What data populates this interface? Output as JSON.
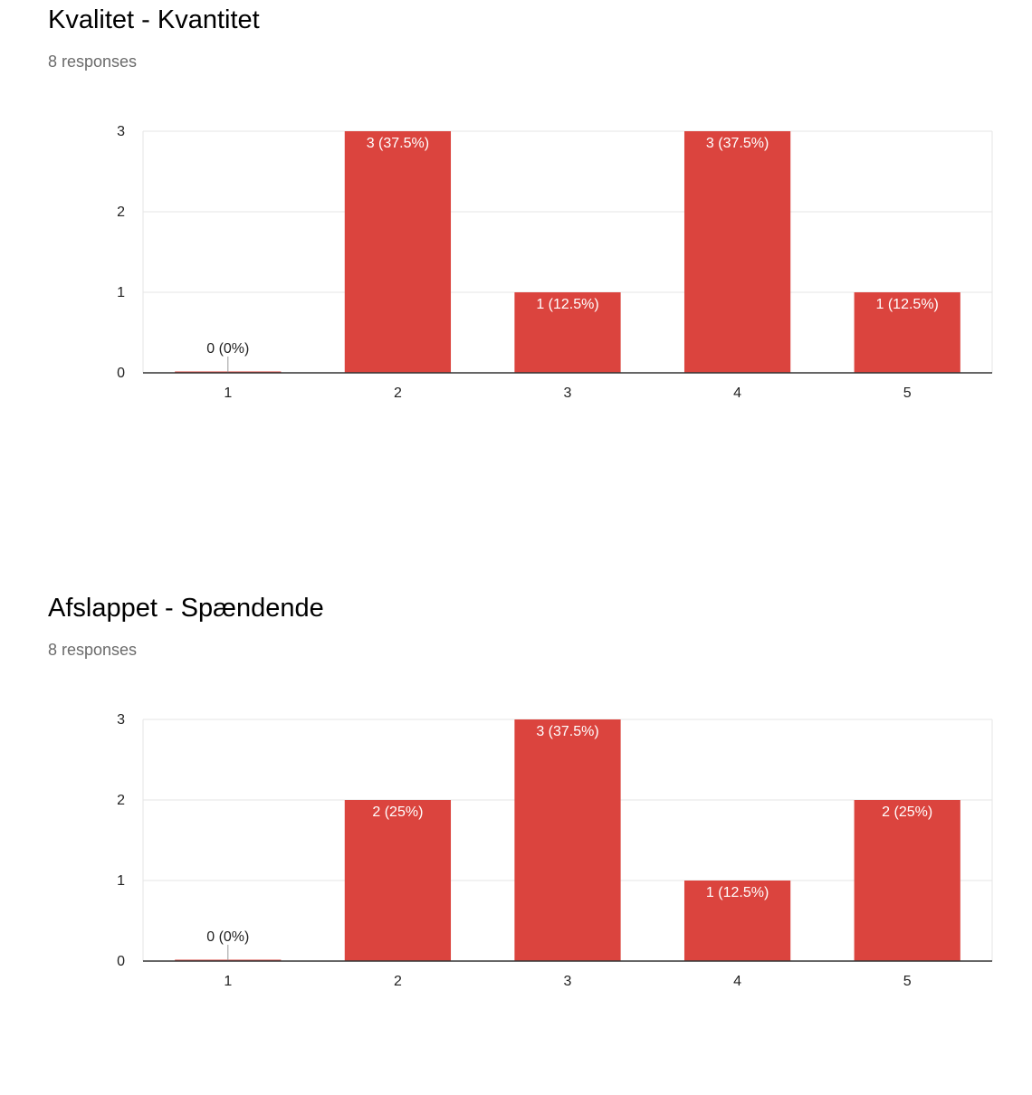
{
  "questions": [
    {
      "title": "Kvalitet - Kvantitet",
      "responses": "8 responses"
    },
    {
      "title": "Afslappet - Spændende",
      "responses": "8 responses"
    }
  ],
  "colors": {
    "bar": "#db443e",
    "grid": "#e6e6e6",
    "axis": "#333333",
    "label_inside": "#ffffff",
    "label_outside": "#222222",
    "tick_text": "#222222"
  },
  "chart_data": [
    {
      "type": "bar",
      "categories": [
        "1",
        "2",
        "3",
        "4",
        "5"
      ],
      "values": [
        0,
        3,
        1,
        3,
        1
      ],
      "data_labels": [
        "0 (0%)",
        "3 (37.5%)",
        "1 (12.5%)",
        "3 (37.5%)",
        "1 (12.5%)"
      ],
      "ylim": [
        0,
        3
      ],
      "yticks": [
        "0",
        "1",
        "2",
        "3"
      ],
      "grid": true
    },
    {
      "type": "bar",
      "categories": [
        "1",
        "2",
        "3",
        "4",
        "5"
      ],
      "values": [
        0,
        2,
        3,
        1,
        2
      ],
      "data_labels": [
        "0 (0%)",
        "2 (25%)",
        "3 (37.5%)",
        "1 (12.5%)",
        "2 (25%)"
      ],
      "ylim": [
        0,
        3
      ],
      "yticks": [
        "0",
        "1",
        "2",
        "3"
      ],
      "grid": true
    }
  ]
}
